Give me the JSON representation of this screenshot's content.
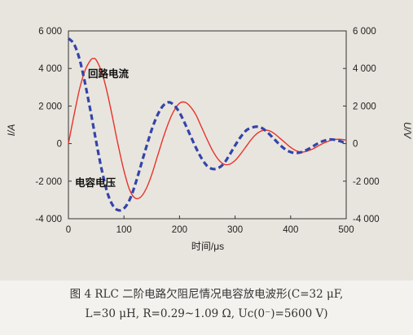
{
  "figure": {
    "caption_line1": "图 4   RLC 二阶电路欠阻尼情况电容放电波形(C=32  μF,",
    "caption_line2": "L=30  μH, R=0.29~1.09  Ω, Uc(0⁻)=5600  V)"
  },
  "chart_data": {
    "type": "line",
    "xlabel": "时间/μs",
    "ylabel_left": "I/A",
    "ylabel_right": "U/V",
    "xlim": [
      0,
      500
    ],
    "ylim_left": [
      -4000,
      6000
    ],
    "ylim_right": [
      -4000,
      6000
    ],
    "x_ticks": [
      "0",
      "100",
      "200",
      "300",
      "400",
      "500"
    ],
    "y_ticks_left": [
      "6 000",
      "4 000",
      "2 000",
      "0",
      "-2 000",
      "-4 000"
    ],
    "y_ticks_right": [
      "6 000",
      "4 000",
      "2 000",
      "0",
      "-2 000",
      "-4 000"
    ],
    "grid": false,
    "annotations": [
      {
        "text": "回路电流",
        "series": "回路电流"
      },
      {
        "text": "电容电压",
        "series": "电容电压"
      }
    ],
    "series": [
      {
        "name": "回路电流",
        "axis": "left",
        "color": "#e8322a",
        "style": "solid",
        "x": [
          0,
          10,
          20,
          30,
          40,
          45,
          50,
          60,
          70,
          80,
          90,
          100,
          110,
          120,
          130,
          140,
          150,
          160,
          170,
          180,
          190,
          200,
          210,
          220,
          230,
          240,
          250,
          260,
          270,
          280,
          290,
          300,
          310,
          320,
          330,
          340,
          350,
          360,
          370,
          380,
          390,
          400,
          410,
          420,
          430,
          440,
          450,
          460,
          470,
          480,
          490,
          500
        ],
        "y": [
          0,
          1500,
          2900,
          3900,
          4450,
          4530,
          4450,
          3800,
          2700,
          1300,
          -150,
          -1450,
          -2450,
          -2900,
          -2850,
          -2400,
          -1650,
          -700,
          250,
          1100,
          1750,
          2150,
          2200,
          1950,
          1500,
          850,
          200,
          -400,
          -850,
          -1100,
          -1100,
          -900,
          -550,
          -150,
          250,
          550,
          700,
          700,
          550,
          300,
          50,
          -200,
          -380,
          -450,
          -400,
          -280,
          -120,
          30,
          150,
          220,
          230,
          180
        ]
      },
      {
        "name": "电容电压",
        "axis": "right",
        "color": "#3344aa",
        "style": "dashed",
        "x": [
          0,
          10,
          20,
          30,
          40,
          50,
          60,
          70,
          80,
          90,
          100,
          110,
          120,
          130,
          140,
          150,
          160,
          170,
          180,
          190,
          200,
          210,
          220,
          230,
          240,
          250,
          260,
          270,
          280,
          290,
          300,
          310,
          320,
          330,
          340,
          350,
          360,
          370,
          380,
          390,
          400,
          410,
          420,
          430,
          440,
          450,
          460,
          470,
          480,
          490,
          500
        ],
        "y": [
          5600,
          5300,
          4500,
          3200,
          1700,
          100,
          -1400,
          -2600,
          -3300,
          -3550,
          -3450,
          -3000,
          -2200,
          -1200,
          -200,
          750,
          1500,
          2000,
          2200,
          2050,
          1650,
          1050,
          400,
          -250,
          -800,
          -1200,
          -1350,
          -1300,
          -1050,
          -600,
          -100,
          350,
          700,
          850,
          900,
          800,
          550,
          250,
          -50,
          -300,
          -450,
          -500,
          -450,
          -320,
          -150,
          30,
          150,
          220,
          200,
          120,
          0
        ]
      }
    ]
  }
}
